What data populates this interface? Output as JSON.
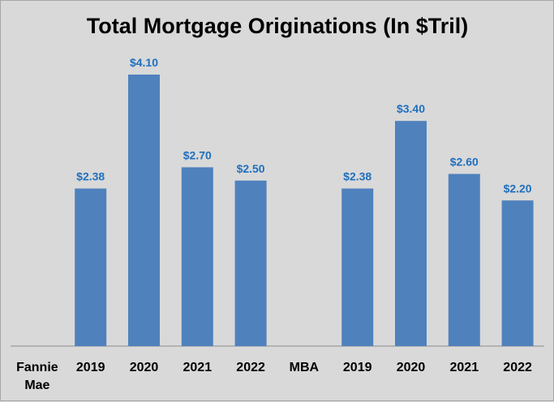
{
  "chart_data": {
    "type": "bar",
    "title": "Total Mortgage Originations (In $Tril)",
    "xlabel": "",
    "ylabel": "",
    "ylim": [
      0,
      4.5
    ],
    "grid": false,
    "legend": "none",
    "bar_color": "#4f81bd",
    "label_color": "#1f6fbf",
    "categories": [
      "Fannie Mae",
      "2019",
      "2020",
      "2021",
      "2022",
      "MBA",
      "2019",
      "2020",
      "2021",
      "2022"
    ],
    "values": [
      null,
      2.38,
      4.1,
      2.7,
      2.5,
      null,
      2.38,
      3.4,
      2.6,
      2.2
    ],
    "data_labels": [
      "",
      "$2.38",
      "$4.10",
      "$2.70",
      "$2.50",
      "",
      "$2.38",
      "$3.40",
      "$2.60",
      "$2.20"
    ]
  }
}
